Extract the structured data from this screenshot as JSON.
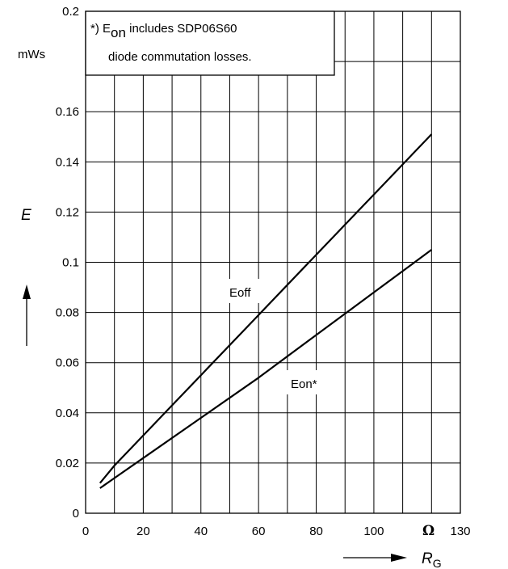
{
  "chart_data": {
    "type": "line",
    "xlabel": "R",
    "xlabel_sub": "G",
    "xunit": "Ω",
    "ylabel": "E",
    "yunit": "mWs",
    "xlim": [
      0,
      130
    ],
    "ylim": [
      0,
      0.2
    ],
    "x_ticks": [
      "0",
      "20",
      "40",
      "60",
      "80",
      "100",
      "130"
    ],
    "y_ticks": [
      "0",
      "0.02",
      "0.04",
      "0.06",
      "0.08",
      "0.1",
      "0.12",
      "0.14",
      "0.16",
      "0.2"
    ],
    "grid": true,
    "note": {
      "line1_prefix": "*) E",
      "line1_sub": "on",
      "line1_suffix": " includes SDP06S60",
      "line2": "diode commutation losses."
    },
    "series": [
      {
        "name": "Eoff",
        "x": [
          5,
          10,
          20,
          40,
          60,
          80,
          100,
          120
        ],
        "y": [
          0.012,
          0.019,
          0.031,
          0.055,
          0.079,
          0.103,
          0.127,
          0.151
        ]
      },
      {
        "name": "Eon*",
        "x": [
          5,
          10,
          20,
          40,
          60,
          80,
          100,
          120
        ],
        "y": [
          0.01,
          0.014,
          0.022,
          0.038,
          0.054,
          0.071,
          0.088,
          0.105
        ]
      }
    ]
  }
}
